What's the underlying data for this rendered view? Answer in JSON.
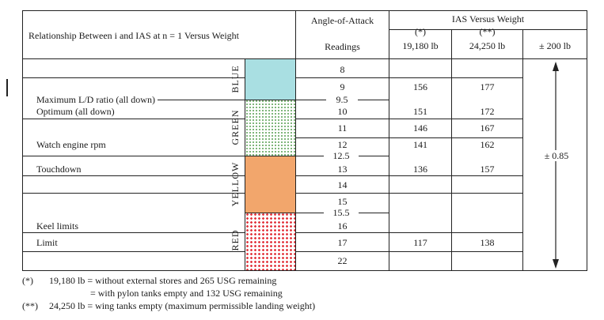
{
  "header": {
    "relationship": "Relationship Between i and IAS at n = 1 Versus Weight",
    "aoa": "Angle-of-Attack",
    "readings": "Readings",
    "ias": "IAS Versus Weight",
    "w1_marker": "(*)",
    "w2_marker": "(**)",
    "w1": "19,180 lb",
    "w2": "24,250 lb",
    "tol": "± 200 lb"
  },
  "bands": [
    "BLUE",
    "GREEN",
    "YELLOW",
    "RED"
  ],
  "band_colors": {
    "blue": "#a9dfe2",
    "green": "#5fa35a",
    "yellow": "#f2a66c",
    "red": "#e2343c"
  },
  "labels": [
    "Maximum L/D ratio (all down)",
    "Optimum (all down)",
    "Watch engine rpm",
    "Touchdown",
    "Keel limits",
    "Limit"
  ],
  "readings": [
    "8",
    "9",
    "10",
    "11",
    "12",
    "13",
    "14",
    "15",
    "16",
    "17",
    "22"
  ],
  "boundaries": [
    "9.5",
    "12.5",
    "15.5"
  ],
  "ias": [
    {
      "aoa": "9",
      "w1": "156",
      "w2": "177"
    },
    {
      "aoa": "10",
      "w1": "151",
      "w2": "172"
    },
    {
      "aoa": "11",
      "w1": "146",
      "w2": "167"
    },
    {
      "aoa": "12",
      "w1": "141",
      "w2": "162"
    },
    {
      "aoa": "13",
      "w1": "136",
      "w2": "157"
    },
    {
      "aoa": "17",
      "w1": "117",
      "w2": "138"
    }
  ],
  "tolerance_value": "± 0.85",
  "footnotes": [
    {
      "marker": "(*)",
      "text": "19,180 lb = without external stores and 265 USG remaining",
      "cont": "= with pylon tanks empty and 132 USG remaining"
    },
    {
      "marker": "(**)",
      "text": "24,250 lb = wing tanks empty (maximum permissible landing weight)"
    }
  ]
}
